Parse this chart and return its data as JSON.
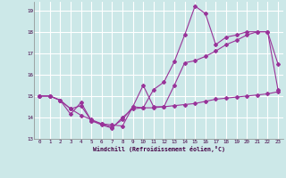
{
  "xlabel": "Windchill (Refroidissement éolien,°C)",
  "background_color": "#cce8e8",
  "grid_color": "#ffffff",
  "line_color": "#993399",
  "xlim": [
    -0.5,
    23.5
  ],
  "ylim": [
    13.0,
    19.4
  ],
  "yticks": [
    13,
    14,
    15,
    16,
    17,
    18,
    19
  ],
  "xticks": [
    0,
    1,
    2,
    3,
    4,
    5,
    6,
    7,
    8,
    9,
    10,
    11,
    12,
    13,
    14,
    15,
    16,
    17,
    18,
    19,
    20,
    21,
    22,
    23
  ],
  "line1_x": [
    0,
    1,
    2,
    3,
    4,
    5,
    6,
    7,
    8,
    9,
    10,
    11,
    12,
    13,
    14,
    15,
    16,
    17,
    18,
    19,
    20,
    21,
    22,
    23
  ],
  "line1_y": [
    15.0,
    15.0,
    14.8,
    14.15,
    14.7,
    13.85,
    13.7,
    13.65,
    13.6,
    14.5,
    14.45,
    14.45,
    14.5,
    14.55,
    14.6,
    14.65,
    14.75,
    14.85,
    14.9,
    14.95,
    15.0,
    15.05,
    15.1,
    15.2
  ],
  "line2_x": [
    0,
    1,
    2,
    3,
    4,
    5,
    6,
    7,
    8,
    9,
    10,
    11,
    12,
    13,
    14,
    15,
    16,
    17,
    18,
    19,
    20,
    21,
    22,
    23
  ],
  "line2_y": [
    15.0,
    15.0,
    14.8,
    14.4,
    14.1,
    13.9,
    13.7,
    13.55,
    13.9,
    14.5,
    15.5,
    14.5,
    14.5,
    15.5,
    16.55,
    16.65,
    16.85,
    17.1,
    17.4,
    17.6,
    17.85,
    18.0,
    18.0,
    15.3
  ],
  "line3_x": [
    0,
    1,
    2,
    3,
    4,
    5,
    6,
    7,
    8,
    9,
    10,
    11,
    12,
    13,
    14,
    15,
    16,
    17,
    18,
    19,
    20,
    21,
    22,
    23
  ],
  "line3_y": [
    15.0,
    15.0,
    14.8,
    14.4,
    14.55,
    13.85,
    13.65,
    13.5,
    14.0,
    14.4,
    14.45,
    15.3,
    15.65,
    16.6,
    17.85,
    19.2,
    18.85,
    17.4,
    17.75,
    17.85,
    18.0,
    18.0,
    18.0,
    16.5
  ]
}
